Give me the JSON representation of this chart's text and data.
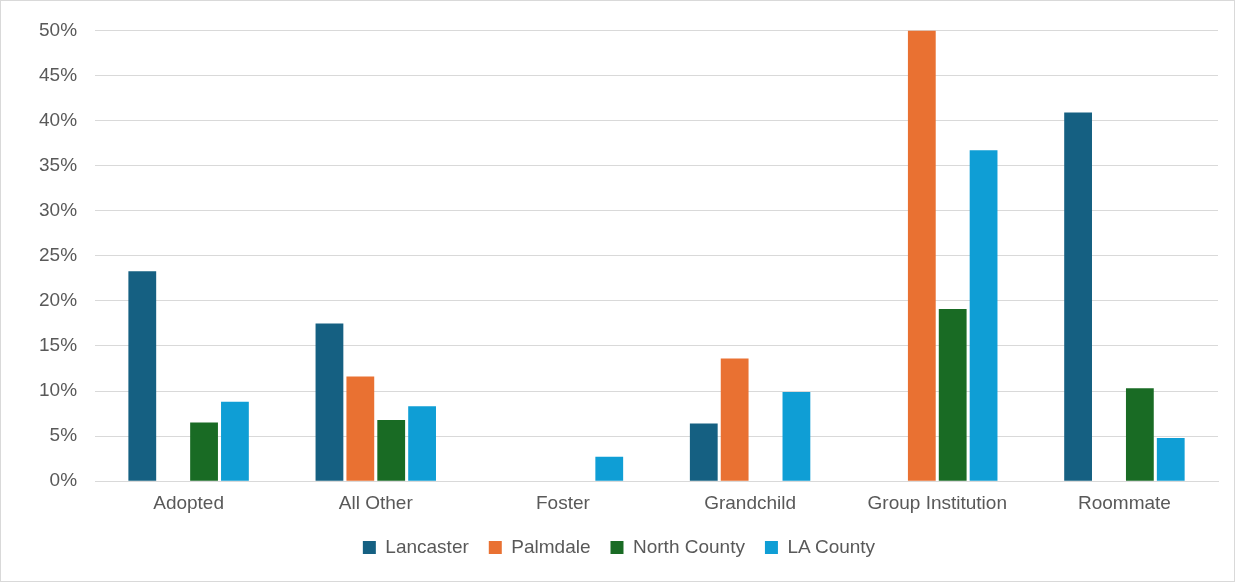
{
  "chart_data": {
    "type": "bar",
    "categories": [
      "Adopted",
      "All Other",
      "Foster",
      "Grandchild",
      "Group Institution",
      "Roommate"
    ],
    "series": [
      {
        "name": "Lancaster",
        "color": "#156082",
        "values": [
          23.3,
          17.5,
          0,
          6.4,
          0,
          40.9
        ]
      },
      {
        "name": "Palmdale",
        "color": "#e97132",
        "values": [
          0,
          11.6,
          0,
          13.6,
          50,
          0
        ]
      },
      {
        "name": "North County",
        "color": "#196b24",
        "values": [
          6.5,
          6.8,
          0,
          0,
          19.1,
          10.3
        ]
      },
      {
        "name": "LA County",
        "color": "#0f9ed5",
        "values": [
          8.8,
          8.3,
          2.7,
          9.9,
          36.7,
          4.8
        ]
      }
    ],
    "ylim": [
      0,
      50
    ],
    "yticks": [
      {
        "value": 0,
        "label": "0%"
      },
      {
        "value": 5,
        "label": "5%"
      },
      {
        "value": 10,
        "label": "10%"
      },
      {
        "value": 15,
        "label": "15%"
      },
      {
        "value": 20,
        "label": "20%"
      },
      {
        "value": 25,
        "label": "25%"
      },
      {
        "value": 30,
        "label": "30%"
      },
      {
        "value": 35,
        "label": "35%"
      },
      {
        "value": 40,
        "label": "40%"
      },
      {
        "value": 45,
        "label": "45%"
      },
      {
        "value": 50,
        "label": "50%"
      }
    ],
    "grid": "y",
    "legend": "bottom"
  }
}
